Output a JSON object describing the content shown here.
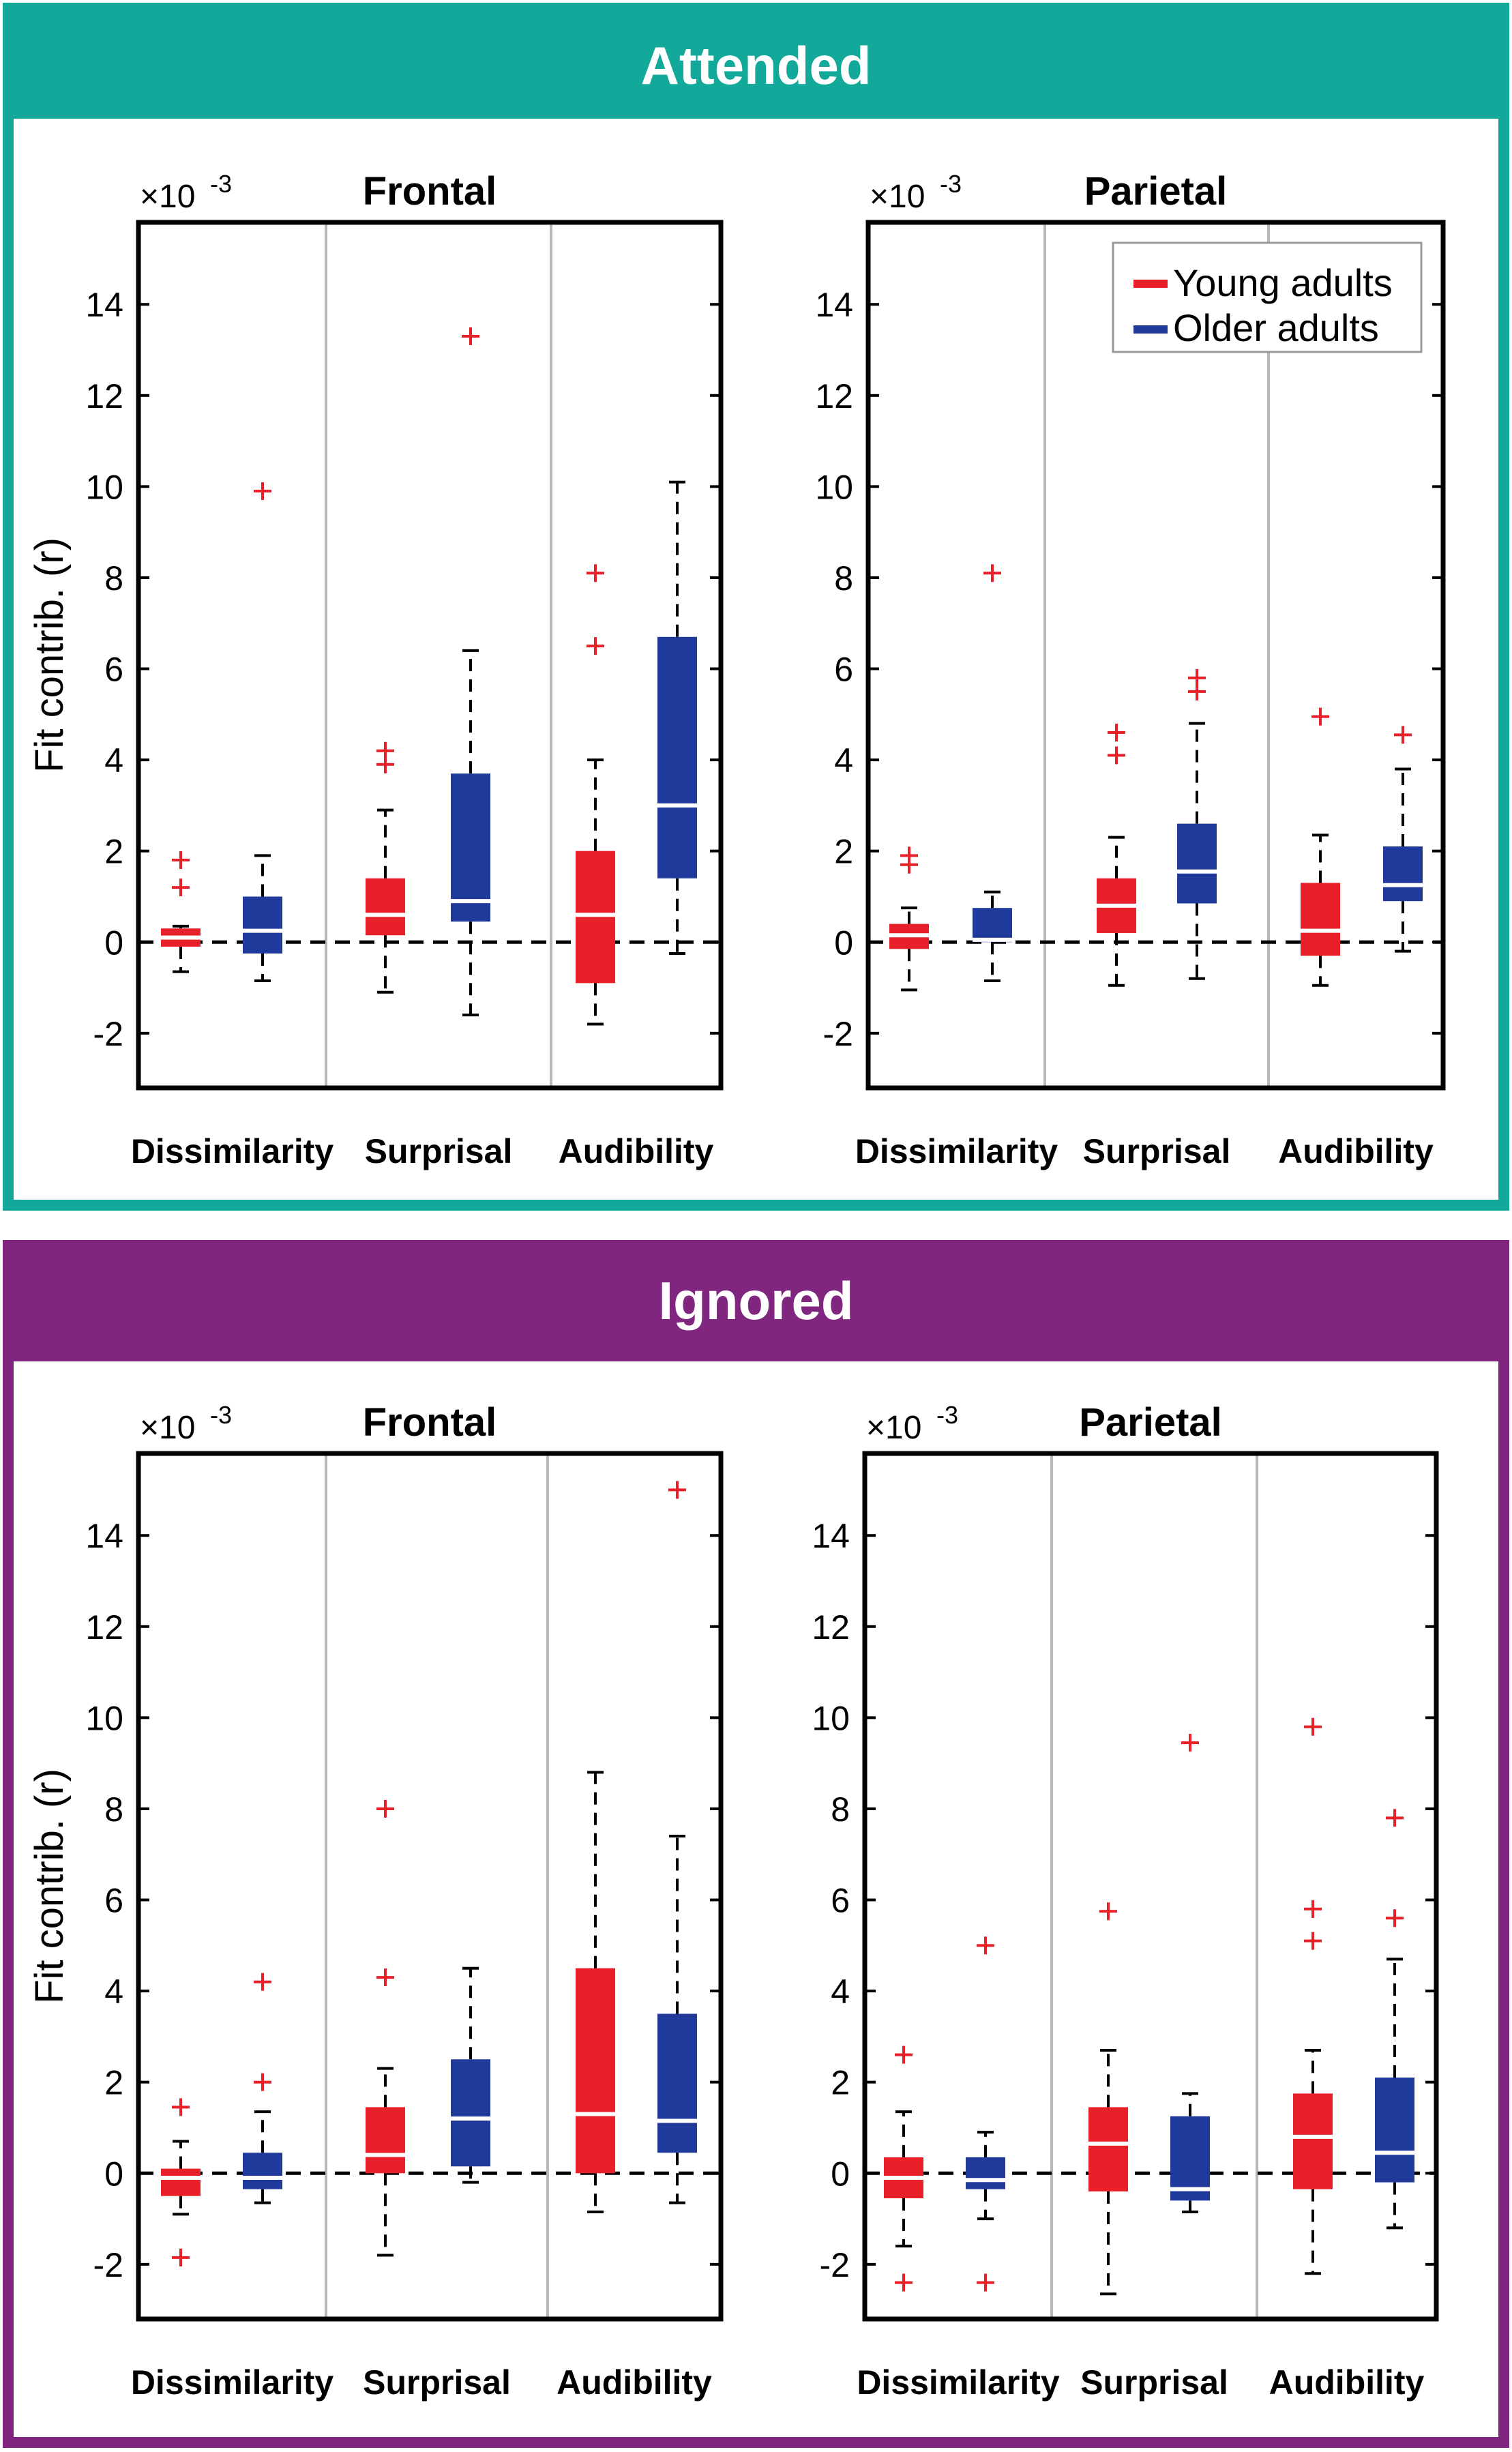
{
  "colors": {
    "attended": "#12A89A",
    "ignored": "#80267F",
    "young": "#E8202A",
    "older": "#1F3A9A",
    "outlier": "#E8202A",
    "separator": "#B8B8B8"
  },
  "legend": {
    "young": "Young adults",
    "older": "Older adults"
  },
  "axis": {
    "ylabel": "Fit contrib. (r)",
    "multiplier": "×10",
    "exponent": "-3"
  },
  "panels": [
    {
      "title": "Attended"
    },
    {
      "title": "Ignored"
    }
  ],
  "chart_data": [
    {
      "type": "box",
      "condition": "Attended",
      "title": "Frontal",
      "ylabel": "Fit contrib. (r)",
      "yscale": "×10^-3",
      "ylim": [
        -3.2,
        15.8
      ],
      "yticks": [
        -2,
        0,
        2,
        4,
        6,
        8,
        10,
        12,
        14
      ],
      "categories": [
        "Dissimilarity",
        "Surprisal",
        "Audibility"
      ],
      "series": [
        {
          "name": "Young adults",
          "boxes": [
            {
              "min": -0.65,
              "q1": -0.1,
              "median": 0.1,
              "q3": 0.3,
              "max": 0.35,
              "outliers": [
                1.2,
                1.8
              ]
            },
            {
              "min": -1.1,
              "q1": 0.15,
              "median": 0.6,
              "q3": 1.4,
              "max": 2.9,
              "outliers": [
                3.9,
                4.2
              ]
            },
            {
              "min": -1.8,
              "q1": -0.9,
              "median": 0.6,
              "q3": 2.0,
              "max": 4.0,
              "outliers": [
                6.5,
                8.1
              ]
            }
          ]
        },
        {
          "name": "Older adults",
          "boxes": [
            {
              "min": -0.85,
              "q1": -0.25,
              "median": 0.25,
              "q3": 1.0,
              "max": 1.9,
              "outliers": [
                9.9
              ]
            },
            {
              "min": -1.6,
              "q1": 0.45,
              "median": 0.9,
              "q3": 3.7,
              "max": 6.4,
              "outliers": [
                13.3
              ]
            },
            {
              "min": -0.25,
              "q1": 1.4,
              "median": 3.0,
              "q3": 6.7,
              "max": 10.1,
              "outliers": []
            }
          ]
        }
      ]
    },
    {
      "type": "box",
      "condition": "Attended",
      "title": "Parietal",
      "ylabel": "",
      "yscale": "×10^-3",
      "ylim": [
        -3.2,
        15.8
      ],
      "yticks": [
        -2,
        0,
        2,
        4,
        6,
        8,
        10,
        12,
        14
      ],
      "categories": [
        "Dissimilarity",
        "Surprisal",
        "Audibility"
      ],
      "legend": [
        "Young adults",
        "Older adults"
      ],
      "series": [
        {
          "name": "Young adults",
          "boxes": [
            {
              "min": -1.05,
              "q1": -0.15,
              "median": 0.15,
              "q3": 0.4,
              "max": 0.75,
              "outliers": [
                1.7,
                1.9
              ]
            },
            {
              "min": -0.95,
              "q1": 0.2,
              "median": 0.8,
              "q3": 1.4,
              "max": 2.3,
              "outliers": [
                4.1,
                4.6
              ]
            },
            {
              "min": -0.95,
              "q1": -0.3,
              "median": 0.25,
              "q3": 1.3,
              "max": 2.35,
              "outliers": [
                4.95
              ]
            }
          ]
        },
        {
          "name": "Older adults",
          "boxes": [
            {
              "min": -0.85,
              "q1": 0.0,
              "median": 0.05,
              "q3": 0.75,
              "max": 1.1,
              "outliers": [
                8.1
              ]
            },
            {
              "min": -0.8,
              "q1": 0.85,
              "median": 1.55,
              "q3": 2.6,
              "max": 4.8,
              "outliers": [
                5.5,
                5.8
              ]
            },
            {
              "min": -0.2,
              "q1": 0.9,
              "median": 1.25,
              "q3": 2.1,
              "max": 3.8,
              "outliers": [
                4.55
              ]
            }
          ]
        }
      ]
    },
    {
      "type": "box",
      "condition": "Ignored",
      "title": "Frontal",
      "ylabel": "Fit contrib. (r)",
      "yscale": "×10^-3",
      "ylim": [
        -3.2,
        15.8
      ],
      "yticks": [
        -2,
        0,
        2,
        4,
        6,
        8,
        10,
        12,
        14
      ],
      "categories": [
        "Dissimilarity",
        "Surprisal",
        "Audibility"
      ],
      "series": [
        {
          "name": "Young adults",
          "boxes": [
            {
              "min": -0.9,
              "q1": -0.5,
              "median": -0.1,
              "q3": 0.1,
              "max": 0.7,
              "outliers": [
                1.45,
                -1.85
              ]
            },
            {
              "min": -1.8,
              "q1": 0.0,
              "median": 0.4,
              "q3": 1.45,
              "max": 2.3,
              "outliers": [
                4.3,
                8.0
              ]
            },
            {
              "min": -0.85,
              "q1": 0.0,
              "median": 1.3,
              "q3": 4.5,
              "max": 8.8,
              "outliers": []
            }
          ]
        },
        {
          "name": "Older adults",
          "boxes": [
            {
              "min": -0.65,
              "q1": -0.35,
              "median": -0.1,
              "q3": 0.45,
              "max": 1.35,
              "outliers": [
                2.0,
                4.2
              ]
            },
            {
              "min": -0.2,
              "q1": 0.15,
              "median": 1.2,
              "q3": 2.5,
              "max": 4.5,
              "outliers": []
            },
            {
              "min": -0.65,
              "q1": 0.45,
              "median": 1.15,
              "q3": 3.5,
              "max": 7.4,
              "outliers": [
                15.0
              ]
            }
          ]
        }
      ]
    },
    {
      "type": "box",
      "condition": "Ignored",
      "title": "Parietal",
      "ylabel": "",
      "yscale": "×10^-3",
      "ylim": [
        -3.2,
        15.8
      ],
      "yticks": [
        -2,
        0,
        2,
        4,
        6,
        8,
        10,
        12,
        14
      ],
      "categories": [
        "Dissimilarity",
        "Surprisal",
        "Audibility"
      ],
      "series": [
        {
          "name": "Young adults",
          "boxes": [
            {
              "min": -1.6,
              "q1": -0.55,
              "median": -0.1,
              "q3": 0.35,
              "max": 1.35,
              "outliers": [
                2.6,
                -2.4
              ]
            },
            {
              "min": -2.65,
              "q1": -0.4,
              "median": 0.65,
              "q3": 1.45,
              "max": 2.7,
              "outliers": [
                5.75
              ]
            },
            {
              "min": -2.2,
              "q1": -0.35,
              "median": 0.8,
              "q3": 1.75,
              "max": 2.7,
              "outliers": [
                5.1,
                5.8,
                9.8
              ]
            }
          ]
        },
        {
          "name": "Older adults",
          "boxes": [
            {
              "min": -1.0,
              "q1": -0.35,
              "median": -0.15,
              "q3": 0.35,
              "max": 0.9,
              "outliers": [
                5.0,
                -2.4
              ]
            },
            {
              "min": -0.85,
              "q1": -0.6,
              "median": -0.35,
              "q3": 1.25,
              "max": 1.75,
              "outliers": [
                9.45
              ]
            },
            {
              "min": -1.2,
              "q1": -0.2,
              "median": 0.45,
              "q3": 2.1,
              "max": 4.7,
              "outliers": [
                5.6,
                7.8
              ]
            }
          ]
        }
      ]
    }
  ]
}
